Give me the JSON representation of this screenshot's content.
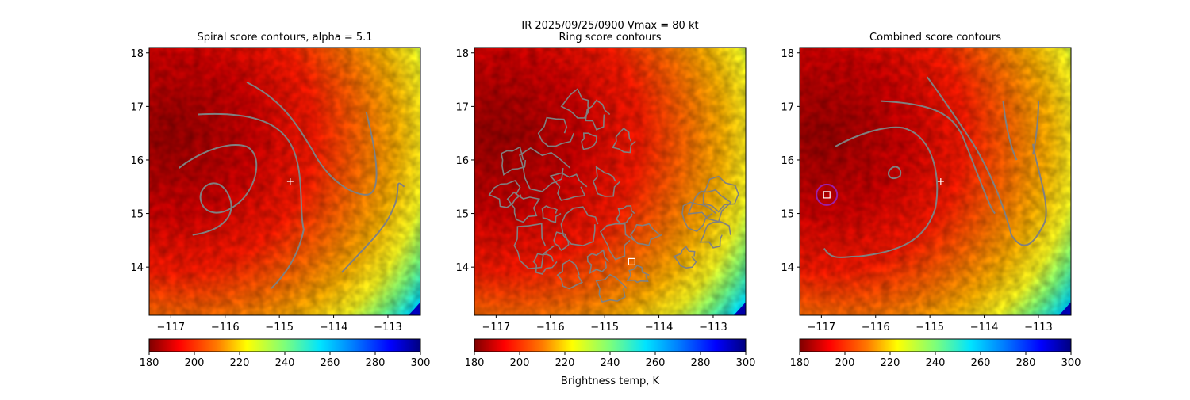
{
  "figure": {
    "suptitle_line1": "IR  2025/09/25/0900    Vmax = 80 kt"
  },
  "colors": {
    "contour": "#808080",
    "center_marker": "#ffffff",
    "ring_marker": "#9b1fa8",
    "background": "#ffffff"
  },
  "chart_data": [
    {
      "type": "heatmap",
      "title": "Spiral score contours, alpha =  5.1",
      "x_ticks": [
        -117,
        -116,
        -115,
        -114,
        -113
      ],
      "x_tick_labels": [
        "−117",
        "−116",
        "−115",
        "−114",
        "−113"
      ],
      "y_ticks": [
        14,
        15,
        16,
        17,
        18
      ],
      "y_tick_labels": [
        "14",
        "15",
        "16",
        "17",
        "18"
      ],
      "xlim": [
        -117.4,
        -112.4
      ],
      "ylim": [
        13.1,
        18.1
      ],
      "storm_center": [
        -114.8,
        15.6
      ],
      "colorbar": {
        "min": 180,
        "max": 300,
        "ticks": [
          180,
          200,
          220,
          240,
          260,
          280,
          300
        ],
        "tick_labels": [
          "180",
          "200",
          "220",
          "240",
          "260",
          "280",
          "300"
        ],
        "cmap": "jet_r",
        "label": ""
      }
    },
    {
      "type": "heatmap",
      "title": "Ring score contours",
      "x_ticks": [
        -117,
        -116,
        -115,
        -114,
        -113
      ],
      "x_tick_labels": [
        "−117",
        "−116",
        "−115",
        "−114",
        "−113"
      ],
      "y_ticks": [
        14,
        15,
        16,
        17,
        18
      ],
      "y_tick_labels": [
        "14",
        "15",
        "16",
        "17",
        "18"
      ],
      "xlim": [
        -117.4,
        -112.4
      ],
      "ylim": [
        13.1,
        18.1
      ],
      "ring_best": [
        -114.5,
        14.1
      ],
      "colorbar": {
        "min": 180,
        "max": 300,
        "ticks": [
          180,
          200,
          220,
          240,
          260,
          280,
          300
        ],
        "tick_labels": [
          "180",
          "200",
          "220",
          "240",
          "260",
          "280",
          "300"
        ],
        "cmap": "jet_r",
        "label": "Brightness temp, K"
      }
    },
    {
      "type": "heatmap",
      "title": "Combined score contours",
      "x_ticks": [
        -117,
        -116,
        -115,
        -114,
        -113
      ],
      "x_tick_labels": [
        "−117",
        "−116",
        "−115",
        "−114",
        "−113"
      ],
      "y_ticks": [
        14,
        15,
        16,
        17,
        18
      ],
      "y_tick_labels": [
        "14",
        "15",
        "16",
        "17",
        "18"
      ],
      "xlim": [
        -117.4,
        -112.4
      ],
      "ylim": [
        13.1,
        18.1
      ],
      "storm_center": [
        -114.8,
        15.6
      ],
      "combined_best": [
        -116.9,
        15.35
      ],
      "colorbar": {
        "min": 180,
        "max": 300,
        "ticks": [
          180,
          200,
          220,
          240,
          260,
          280,
          300
        ],
        "tick_labels": [
          "180",
          "200",
          "220",
          "240",
          "260",
          "280",
          "300"
        ],
        "cmap": "jet_r",
        "label": ""
      }
    }
  ]
}
